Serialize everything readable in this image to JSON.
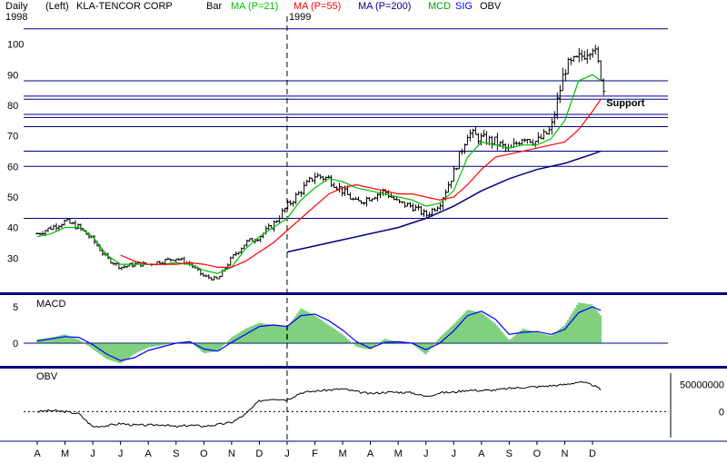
{
  "header": {
    "period": "Daily",
    "axis_side": "(Left)",
    "symbol": "KLA-TENCOR CORP",
    "bar_label": "Bar",
    "ma21_label": "MA (P=21)",
    "ma55_label": "MA (P=55)",
    "ma200_label": "MA (P=200)",
    "mcd_label": "MCD",
    "sig_label": "SIG",
    "obv_label": "OBV"
  },
  "colors": {
    "price_bars": "#000000",
    "ma21": "#00c000",
    "ma55": "#ff0000",
    "ma200": "#000080",
    "macd_hist": "#00a000",
    "macd_signal": "#0000ff",
    "grid": "#000080",
    "panel_border": "#000080"
  },
  "chart_data": [
    {
      "type": "line",
      "panel": "price",
      "years": [
        {
          "label": "1998",
          "month_index": 0
        },
        {
          "label": "1999",
          "month_index": 9
        }
      ],
      "months": [
        "A",
        "M",
        "J",
        "J",
        "A",
        "S",
        "O",
        "N",
        "D",
        "J",
        "F",
        "M",
        "A",
        "M",
        "J",
        "J",
        "A",
        "S",
        "O",
        "N",
        "D"
      ],
      "ylim": [
        20,
        107
      ],
      "yticks": [
        30,
        40,
        50,
        60,
        70,
        80,
        90,
        100
      ],
      "horizontal_levels": [
        43,
        60,
        65,
        73,
        76,
        77,
        82,
        83,
        88,
        105
      ],
      "annotation": {
        "text": "Support",
        "month": 20.4,
        "value": 80.8
      },
      "series": [
        {
          "name": "Bar",
          "role": "close",
          "months": [
            0,
            0.5,
            1,
            1.5,
            2,
            2.5,
            3,
            3.5,
            4,
            4.5,
            5,
            5.5,
            6,
            6.5,
            7,
            7.5,
            8,
            8.5,
            9,
            9.5,
            10,
            10.5,
            11,
            11.5,
            12,
            12.5,
            13,
            13.5,
            14,
            14.5,
            15,
            15.5,
            16,
            16.5,
            17,
            17.5,
            18,
            18.5,
            19,
            19.5,
            20,
            20.3,
            20.4
          ],
          "values": [
            38,
            40,
            42,
            40,
            36,
            30,
            27,
            28,
            28,
            29,
            30,
            28,
            24,
            23,
            30,
            35,
            37,
            41,
            47,
            52,
            57,
            56,
            52,
            48,
            50,
            52,
            48,
            47,
            44,
            48,
            58,
            71,
            69,
            68,
            65,
            70,
            68,
            72,
            92,
            95,
            100,
            90,
            85
          ]
        },
        {
          "name": "MA (P=21)",
          "months": [
            0,
            0.5,
            1,
            1.5,
            2,
            2.5,
            3,
            3.5,
            4,
            4.5,
            5,
            5.5,
            6,
            6.5,
            7,
            7.5,
            8,
            8.5,
            9,
            9.5,
            10,
            10.5,
            11,
            11.5,
            12,
            12.5,
            13,
            13.5,
            14,
            14.5,
            15,
            15.5,
            16,
            16.5,
            17,
            17.5,
            18,
            18.5,
            19,
            19.5,
            20,
            20.3
          ],
          "values": [
            37,
            38,
            40,
            40,
            37,
            31,
            28,
            28,
            28,
            28,
            28.5,
            28,
            26,
            25,
            27,
            33,
            37,
            40,
            43,
            49,
            53,
            56,
            55,
            53,
            52,
            51,
            50,
            49,
            47,
            48,
            52,
            63,
            68,
            67,
            66,
            67,
            67,
            69,
            75,
            88,
            90,
            88
          ]
        },
        {
          "name": "MA (P=55)",
          "months": [
            3,
            3.5,
            4,
            4.5,
            5,
            5.5,
            6,
            6.5,
            7,
            7.5,
            8,
            8.5,
            9,
            9.5,
            10,
            10.5,
            11,
            11.5,
            12,
            12.5,
            13,
            13.5,
            14,
            14.5,
            15,
            15.5,
            16,
            16.5,
            17,
            17.5,
            18,
            18.5,
            19,
            19.5,
            20,
            20.3
          ],
          "values": [
            31,
            29,
            28,
            28,
            28,
            28.5,
            28,
            27,
            27,
            29,
            32,
            35,
            39,
            43,
            47,
            51,
            53,
            54,
            53,
            52,
            51,
            51,
            50,
            49,
            50,
            54,
            59,
            63,
            64,
            65,
            66,
            67,
            68,
            72,
            78,
            82
          ]
        },
        {
          "name": "MA (P=200)",
          "months": [
            9,
            10,
            11,
            12,
            13,
            14,
            15,
            16,
            17,
            18,
            19,
            20,
            20.3
          ],
          "values": [
            32,
            34,
            36,
            38,
            40,
            43,
            47,
            52,
            56,
            59,
            61,
            64,
            65
          ]
        }
      ]
    },
    {
      "type": "bar",
      "panel": "macd",
      "title": "MACD",
      "ylim": [
        -2.5,
        6.5
      ],
      "yticks": [
        0,
        5
      ],
      "series": [
        {
          "name": "MCD",
          "months": [
            0,
            0.5,
            1,
            1.5,
            2,
            2.5,
            3,
            3.5,
            4,
            4.5,
            5,
            5.5,
            6,
            6.5,
            7,
            7.5,
            8,
            8.5,
            9,
            9.5,
            10,
            10.5,
            11,
            11.5,
            12,
            12.5,
            13,
            13.5,
            14,
            14.5,
            15,
            15.5,
            16,
            16.5,
            17,
            17.5,
            18,
            18.5,
            19,
            19.5,
            20,
            20.3
          ],
          "values": [
            0.5,
            0.8,
            1.2,
            0.5,
            -0.8,
            -2.2,
            -2.8,
            -1.5,
            -0.6,
            -0.3,
            0.1,
            0.3,
            -1.4,
            -1.1,
            0.8,
            2.0,
            2.8,
            2.5,
            2.2,
            4.8,
            3.8,
            2.5,
            1.2,
            -0.5,
            -0.9,
            0.6,
            0.2,
            -0.1,
            -1.6,
            0.8,
            2.6,
            4.6,
            4.2,
            2.7,
            0.4,
            2.0,
            1.5,
            1.0,
            2.5,
            5.6,
            5.3,
            3.8
          ]
        },
        {
          "name": "SIG",
          "months": [
            0,
            0.5,
            1,
            1.5,
            2,
            2.5,
            3,
            3.5,
            4,
            4.5,
            5,
            5.5,
            6,
            6.5,
            7,
            7.5,
            8,
            8.5,
            9,
            9.5,
            10,
            10.5,
            11,
            11.5,
            12,
            12.5,
            13,
            13.5,
            14,
            14.5,
            15,
            15.5,
            16,
            16.5,
            17,
            17.5,
            18,
            18.5,
            19,
            19.5,
            20,
            20.3
          ],
          "values": [
            0.3,
            0.6,
            0.9,
            0.8,
            -0.2,
            -1.5,
            -2.4,
            -2.0,
            -1.0,
            -0.5,
            0,
            0.2,
            -0.8,
            -1.1,
            0.1,
            1.2,
            2.3,
            2.5,
            2.3,
            3.8,
            4.0,
            3.1,
            1.8,
            0.2,
            -0.7,
            0.1,
            0.2,
            0,
            -0.9,
            0,
            1.7,
            3.8,
            4.4,
            3.3,
            1.2,
            1.5,
            1.6,
            1.2,
            1.9,
            4.2,
            5.0,
            4.5
          ]
        }
      ]
    },
    {
      "type": "line",
      "panel": "obv",
      "title": "OBV",
      "ylim": [
        -48000000,
        78000000
      ],
      "yticks": [
        0,
        50000000
      ],
      "series": [
        {
          "name": "OBV",
          "months": [
            0,
            0.5,
            1,
            1.5,
            2,
            2.5,
            3,
            3.5,
            4,
            4.5,
            5,
            5.5,
            6,
            6.5,
            7,
            7.5,
            8,
            8.5,
            9,
            9.5,
            10,
            10.5,
            11,
            11.5,
            12,
            12.5,
            13,
            13.5,
            14,
            14.5,
            15,
            15.5,
            16,
            16.5,
            17,
            17.5,
            18,
            18.5,
            19,
            19.5,
            20,
            20.3
          ],
          "values": [
            0,
            2000000,
            0,
            -4000000,
            -28000000,
            -26000000,
            -22000000,
            -25000000,
            -25000000,
            -24000000,
            -28000000,
            -25000000,
            -27000000,
            -24000000,
            -20000000,
            -5000000,
            20000000,
            24000000,
            22000000,
            35000000,
            38000000,
            40000000,
            42000000,
            37000000,
            33000000,
            36000000,
            36000000,
            35000000,
            28000000,
            35000000,
            36000000,
            40000000,
            39000000,
            40000000,
            43000000,
            45000000,
            46000000,
            48000000,
            50000000,
            55000000,
            50000000,
            40000000
          ]
        }
      ]
    }
  ]
}
